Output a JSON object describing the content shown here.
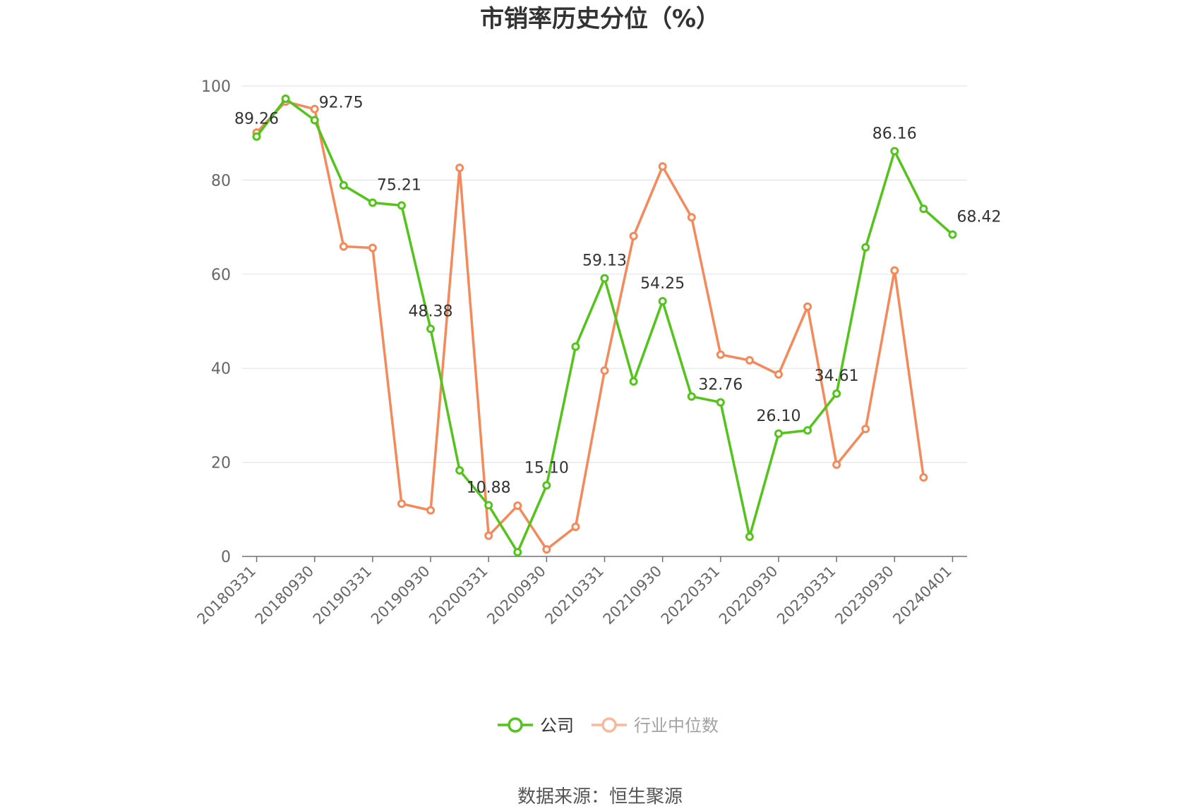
{
  "chart_data": {
    "type": "line",
    "title": "市销率历史分位（%）",
    "source": "数据来源：恒生聚源",
    "ylim": [
      0,
      100
    ],
    "yticks": [
      "0",
      "20",
      "40",
      "60",
      "80",
      "100"
    ],
    "grid": true,
    "legend_placement": "bottom-center",
    "x_tick_labels": [
      "20180331",
      "20180930",
      "20190331",
      "20190930",
      "20200331",
      "20200930",
      "20210331",
      "20210930",
      "20220331",
      "20220930",
      "20230331",
      "20230930",
      "20240401"
    ],
    "x_tick_positions": [
      0,
      2,
      4,
      6,
      8,
      10,
      12,
      14,
      16,
      18,
      20,
      22,
      24
    ],
    "series": [
      {
        "name": "公司",
        "color": "#52c41a",
        "values": [
          89.26,
          97.3,
          92.75,
          78.9,
          75.21,
          74.6,
          48.38,
          18.3,
          10.88,
          0.9,
          15.1,
          44.6,
          59.13,
          37.2,
          54.25,
          34.0,
          32.76,
          4.2,
          26.1,
          26.8,
          34.61,
          65.7,
          86.16,
          73.9,
          68.42
        ],
        "labels": [
          "89.26",
          "",
          "92.75",
          "",
          "75.21",
          "",
          "48.38",
          "",
          "10.88",
          "",
          "15.10",
          "",
          "59.13",
          "",
          "54.25",
          "",
          "32.76",
          "",
          "26.10",
          "",
          "34.61",
          "",
          "86.16",
          "",
          "68.42"
        ]
      },
      {
        "name": "行业中位数",
        "color": "#f5895a",
        "values": [
          90.1,
          96.7,
          95.1,
          65.9,
          65.6,
          11.2,
          9.8,
          82.6,
          4.4,
          10.8,
          1.5,
          6.3,
          39.5,
          68.1,
          82.9,
          72.1,
          42.9,
          41.7,
          38.7,
          53.1,
          19.5,
          27.1,
          60.8,
          16.8,
          null
        ],
        "labels": []
      }
    ]
  }
}
